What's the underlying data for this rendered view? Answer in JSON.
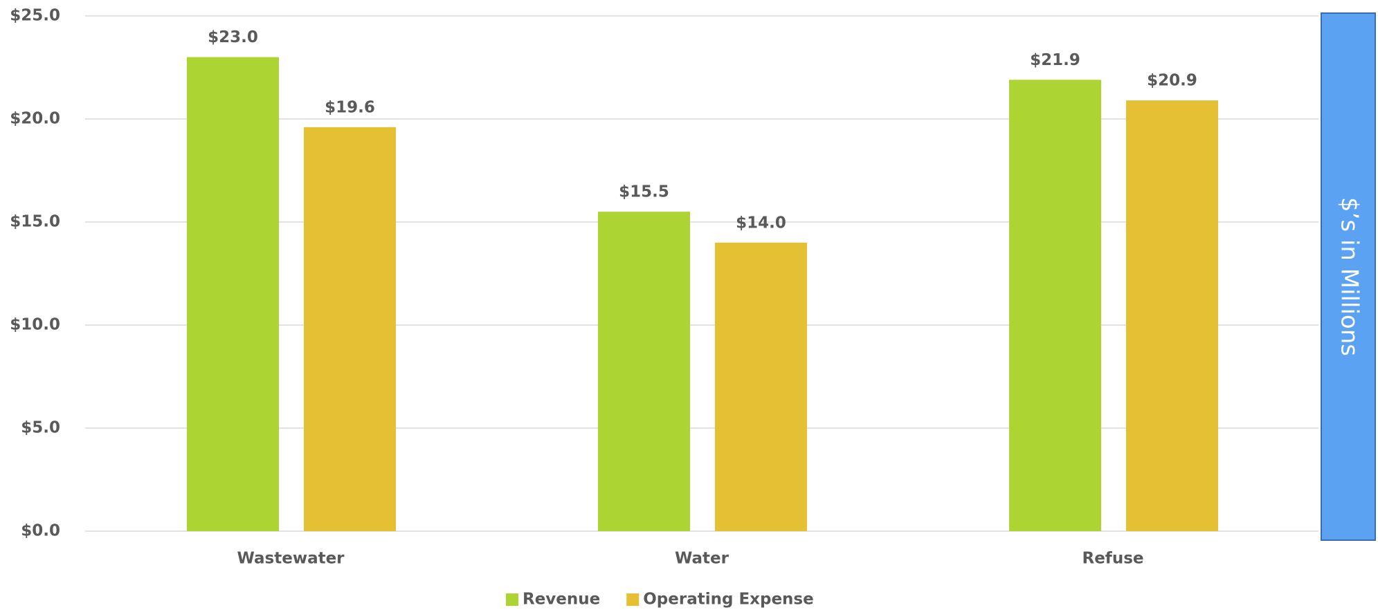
{
  "chart_data": {
    "type": "bar",
    "y_label": "$’s in Millions",
    "categories": [
      "Wastewater",
      "Water",
      "Refuse"
    ],
    "series": [
      {
        "name": "Revenue",
        "color": "#acd433",
        "values": [
          23.0,
          15.5,
          21.9
        ],
        "value_labels": [
          "$23.0",
          "$15.5",
          "$21.9"
        ]
      },
      {
        "name": "Operating Expense",
        "color": "#e4c032",
        "values": [
          19.6,
          14.0,
          20.9
        ],
        "value_labels": [
          "$19.6",
          "$14.0",
          "$20.9"
        ]
      }
    ],
    "ylim": [
      0,
      25
    ],
    "yticks": [
      {
        "value": 0,
        "label": "$0.0"
      },
      {
        "value": 5,
        "label": "$5.0"
      },
      {
        "value": 10,
        "label": "$10.0"
      },
      {
        "value": 15,
        "label": "$15.0"
      },
      {
        "value": 20,
        "label": "$20.0"
      },
      {
        "value": 25,
        "label": "$25.0"
      }
    ],
    "grid": true,
    "legend": "bottom"
  }
}
